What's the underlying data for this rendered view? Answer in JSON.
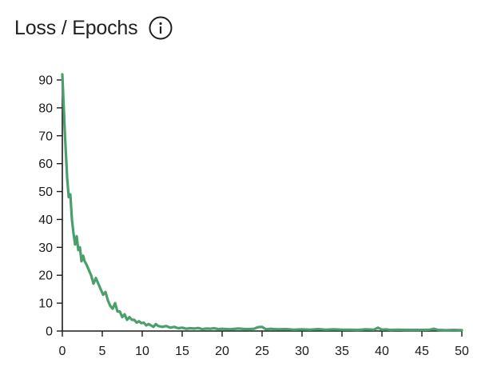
{
  "header": {
    "title": "Loss / Epochs",
    "info_icon": "info-circle-icon"
  },
  "chart_data": {
    "type": "line",
    "title": "Loss / Epochs",
    "xlabel": "",
    "ylabel": "",
    "xlim": [
      0,
      50
    ],
    "ylim": [
      0,
      90
    ],
    "x_ticks": [
      0,
      5,
      10,
      15,
      20,
      25,
      30,
      35,
      40,
      45,
      50
    ],
    "y_ticks": [
      0,
      10,
      20,
      30,
      40,
      50,
      60,
      70,
      80,
      90
    ],
    "grid": false,
    "line_color": "#4a9f6b",
    "series": [
      {
        "x": [
          0.0,
          0.3,
          0.6,
          0.8,
          1.0,
          1.2,
          1.4,
          1.6,
          1.8,
          2.0,
          2.2,
          2.4,
          2.6,
          2.8,
          3.0,
          3.3,
          3.6,
          3.9,
          4.2,
          4.5,
          4.8,
          5.1,
          5.4,
          5.7,
          6.0,
          6.3,
          6.6,
          6.9,
          7.2,
          7.5,
          7.8,
          8.1,
          8.4,
          8.7,
          9.0,
          9.3,
          9.6,
          9.9,
          10.2,
          10.5,
          10.8,
          11.1,
          11.4,
          11.7,
          12.0,
          12.5,
          13.0,
          13.5,
          14.0,
          14.5,
          15.0,
          15.5,
          16.0,
          16.5,
          17.0,
          17.5,
          18.0,
          18.5,
          19.0,
          19.5,
          20.0,
          21.0,
          22.0,
          23.0,
          24.0,
          24.5,
          25.0,
          25.5,
          26.0,
          27.0,
          28.0,
          29.0,
          30.0,
          31.0,
          32.0,
          33.0,
          34.0,
          35.0,
          36.0,
          37.0,
          38.0,
          39.0,
          39.5,
          40.0,
          40.5,
          41.0,
          42.0,
          43.0,
          44.0,
          45.0,
          46.0,
          46.5,
          47.0,
          48.0,
          49.0,
          50.0
        ],
        "values": [
          92,
          72,
          55,
          48,
          49,
          40,
          35,
          31,
          34,
          29,
          30,
          25,
          27,
          25,
          24,
          22,
          20,
          17,
          19,
          17,
          15,
          13,
          14,
          11,
          9,
          8,
          10,
          7,
          7,
          5,
          6,
          4,
          5,
          4,
          4,
          3,
          3.5,
          2.8,
          3,
          2,
          2.5,
          2.0,
          1.5,
          2.5,
          1.8,
          1.5,
          1.8,
          1.2,
          1.5,
          1.0,
          1.2,
          0.8,
          1.0,
          0.9,
          1.1,
          0.7,
          0.9,
          0.8,
          1.0,
          0.7,
          0.8,
          0.6,
          0.9,
          0.7,
          0.8,
          1.4,
          1.5,
          0.6,
          0.8,
          0.6,
          0.7,
          0.5,
          0.6,
          0.5,
          0.7,
          0.5,
          0.6,
          0.5,
          0.5,
          0.4,
          0.6,
          0.5,
          1.2,
          0.5,
          0.6,
          0.4,
          0.5,
          0.4,
          0.4,
          0.4,
          0.5,
          0.8,
          0.4,
          0.3,
          0.4,
          0.3
        ]
      }
    ]
  }
}
